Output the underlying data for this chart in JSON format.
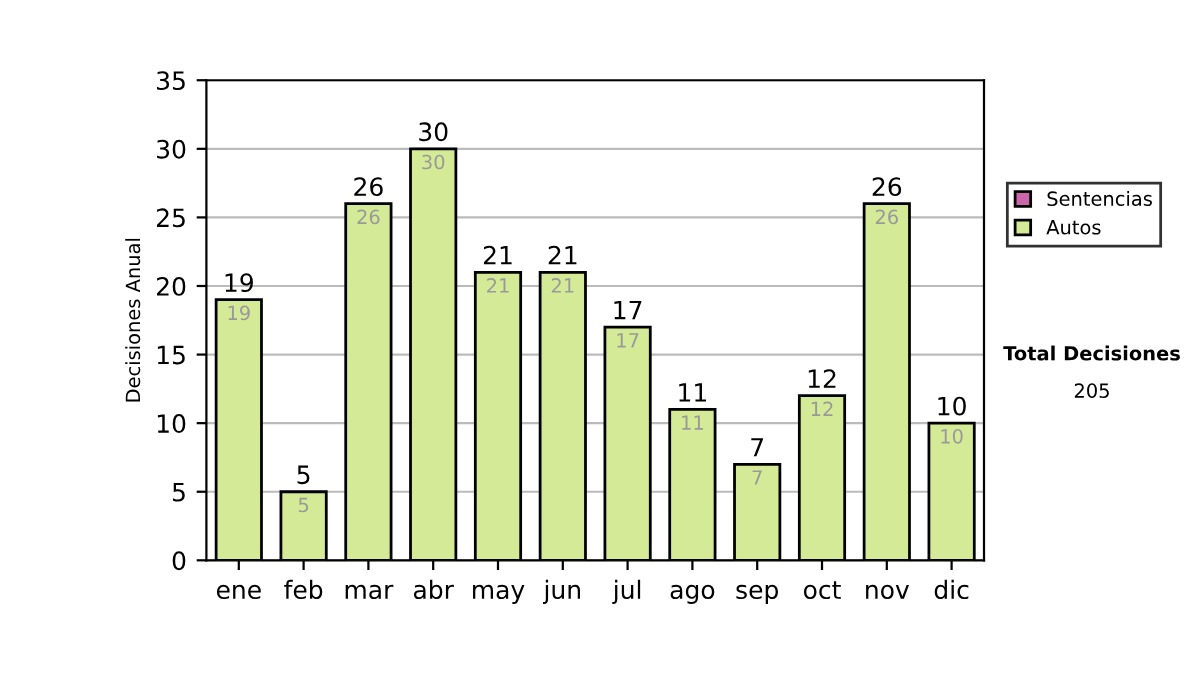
{
  "chart_data": {
    "type": "bar",
    "ylabel": "Decisiones Anual",
    "categories": [
      "ene",
      "feb",
      "mar",
      "abr",
      "may",
      "jun",
      "jul",
      "ago",
      "sep",
      "oct",
      "nov",
      "dic"
    ],
    "stacked": true,
    "series": [
      {
        "name": "Sentencias",
        "color": "#cc66aa",
        "values": [
          0,
          0,
          0,
          0,
          0,
          0,
          0,
          0,
          0,
          0,
          0,
          0
        ]
      },
      {
        "name": "Autos",
        "color": "#d4ea96",
        "values": [
          19,
          5,
          26,
          30,
          21,
          21,
          17,
          11,
          7,
          12,
          26,
          10
        ],
        "value_labels": [
          "19",
          "5",
          "26",
          "30",
          "21",
          "21",
          "17",
          "11",
          "7",
          "12",
          "26",
          "10"
        ]
      }
    ],
    "totals": [
      "19",
      "5",
      "26",
      "30",
      "21",
      "21",
      "17",
      "11",
      "7",
      "12",
      "26",
      "10"
    ],
    "ylim": [
      0,
      35
    ],
    "yticks": [
      0,
      5,
      10,
      15,
      20,
      25,
      30,
      35
    ],
    "grid": "y",
    "legend": "right",
    "annotations": [
      "Total Decisiones",
      "205"
    ]
  }
}
